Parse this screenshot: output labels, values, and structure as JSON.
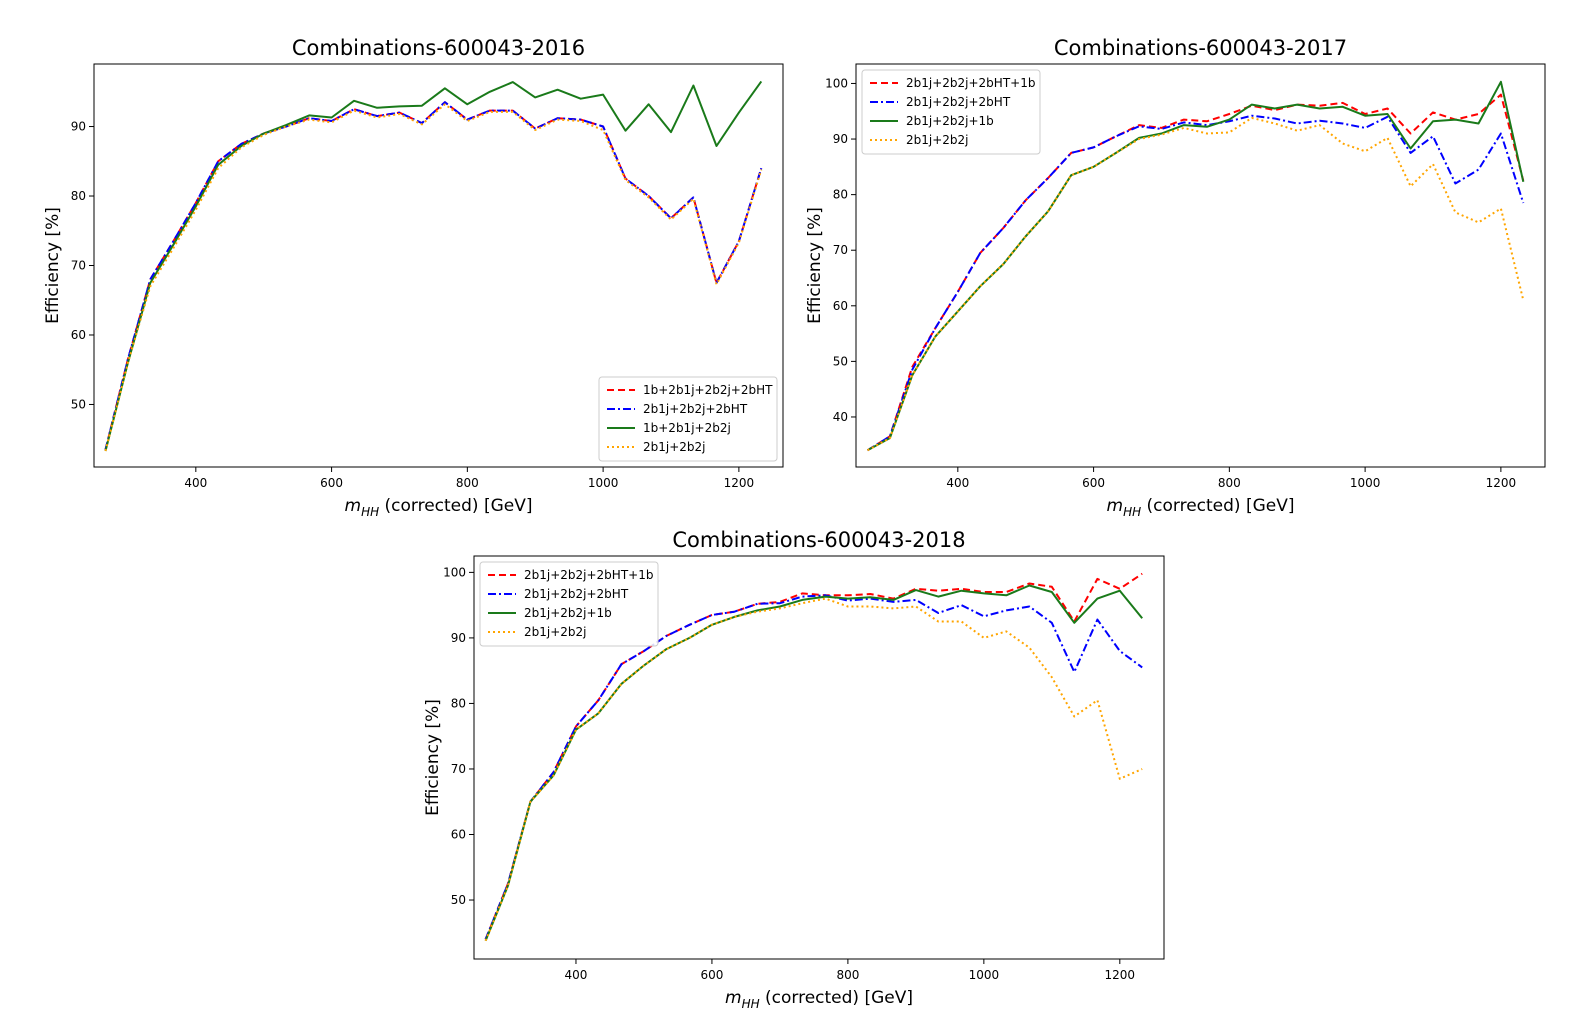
{
  "figure_title": "",
  "chart_data": [
    {
      "type": "line",
      "title": "Combinations-600043-2016",
      "xlabel_main": "m",
      "xlabel_sub": "HH",
      "xlabel_rest": " (corrected) [GeV]",
      "ylabel": "Efficiency [%]",
      "xlim": [
        250,
        1265
      ],
      "ylim": [
        41,
        99
      ],
      "xticks": [
        400,
        600,
        800,
        1000,
        1200
      ],
      "yticks": [
        50,
        60,
        70,
        80,
        90
      ],
      "legend_position": "lower-right",
      "grid": false,
      "x": [
        267,
        300,
        333,
        367,
        400,
        433,
        467,
        500,
        533,
        567,
        600,
        633,
        667,
        700,
        733,
        767,
        800,
        833,
        867,
        900,
        933,
        967,
        1000,
        1033,
        1067,
        1100,
        1133,
        1167,
        1200,
        1233
      ],
      "series": [
        {
          "name": "1b+2b1j+2b2j+2bHT",
          "color": "#ff0000",
          "dash": "7,4",
          "values": [
            43.5,
            56.5,
            68.0,
            73.5,
            79.0,
            85.0,
            87.5,
            89.0,
            90.0,
            91.2,
            90.8,
            92.5,
            91.5,
            92.0,
            90.5,
            93.5,
            91.0,
            92.3,
            92.3,
            89.7,
            91.2,
            91.0,
            90.0,
            82.5,
            80.0,
            76.8,
            79.8,
            67.5,
            73.5,
            84.0
          ]
        },
        {
          "name": "2b1j+2b2j+2bHT",
          "color": "#0000ff",
          "dash": "8,3,2,3",
          "values": [
            43.5,
            56.5,
            68.0,
            73.5,
            79.0,
            85.0,
            87.5,
            89.0,
            90.0,
            91.2,
            90.8,
            92.5,
            91.5,
            92.0,
            90.5,
            93.5,
            91.0,
            92.3,
            92.3,
            89.7,
            91.2,
            91.0,
            90.0,
            82.5,
            80.0,
            76.8,
            79.8,
            67.5,
            73.5,
            84.0
          ]
        },
        {
          "name": "1b+2b1j+2b2j",
          "color": "#1a7a1a",
          "dash": "",
          "values": [
            43.3,
            56.0,
            67.5,
            73.0,
            78.5,
            84.5,
            87.2,
            89.0,
            90.2,
            91.6,
            91.3,
            93.7,
            92.7,
            92.9,
            93.0,
            95.5,
            93.2,
            95.0,
            96.4,
            94.2,
            95.3,
            94.0,
            94.6,
            89.4,
            93.2,
            89.2,
            95.9,
            87.2,
            92.0,
            96.5
          ]
        },
        {
          "name": "2b1j+2b2j",
          "color": "#ffa500",
          "dash": "2,3",
          "values": [
            43.3,
            56.0,
            67.0,
            72.5,
            78.0,
            84.0,
            87.0,
            88.8,
            90.0,
            91.0,
            90.6,
            92.3,
            91.3,
            91.8,
            90.3,
            93.2,
            90.8,
            92.1,
            92.1,
            89.5,
            91.0,
            90.8,
            89.5,
            82.3,
            79.8,
            76.6,
            79.6,
            67.3,
            73.3,
            83.8
          ]
        }
      ]
    },
    {
      "type": "line",
      "title": "Combinations-600043-2017",
      "xlabel_main": "m",
      "xlabel_sub": "HH",
      "xlabel_rest": " (corrected) [GeV]",
      "ylabel": "Efficiency [%]",
      "xlim": [
        250,
        1265
      ],
      "ylim": [
        31,
        103.5
      ],
      "xticks": [
        400,
        600,
        800,
        1000,
        1200
      ],
      "yticks": [
        40,
        50,
        60,
        70,
        80,
        90,
        100
      ],
      "legend_position": "upper-left",
      "grid": false,
      "x": [
        267,
        300,
        333,
        367,
        400,
        433,
        467,
        500,
        533,
        567,
        600,
        633,
        667,
        700,
        733,
        767,
        800,
        833,
        867,
        900,
        933,
        967,
        1000,
        1033,
        1067,
        1100,
        1133,
        1167,
        1200,
        1233
      ],
      "series": [
        {
          "name": "2b1j+2b2j+2bHT+1b",
          "color": "#ff0000",
          "dash": "7,4",
          "values": [
            34.0,
            36.5,
            49.0,
            56.0,
            62.5,
            69.5,
            74.0,
            79.0,
            83.0,
            87.5,
            88.5,
            90.5,
            92.5,
            92.0,
            93.5,
            93.2,
            94.5,
            96.0,
            95.2,
            96.2,
            96.0,
            96.5,
            94.5,
            95.5,
            91.0,
            94.8,
            93.5,
            94.5,
            98.0,
            82.5
          ]
        },
        {
          "name": "2b1j+2b2j+2bHT",
          "color": "#0000ff",
          "dash": "8,3,2,3",
          "values": [
            34.0,
            36.5,
            48.5,
            56.0,
            62.5,
            69.5,
            74.0,
            79.0,
            83.0,
            87.5,
            88.5,
            90.5,
            92.3,
            91.8,
            93.0,
            92.5,
            93.2,
            94.2,
            93.7,
            92.8,
            93.3,
            92.8,
            92.0,
            94.0,
            87.5,
            90.5,
            82.0,
            84.5,
            91.0,
            78.5
          ]
        },
        {
          "name": "2b1j+2b2j+1b",
          "color": "#1a7a1a",
          "dash": "",
          "values": [
            34.0,
            36.2,
            47.5,
            54.5,
            59.0,
            63.5,
            67.5,
            72.5,
            77.0,
            83.5,
            85.0,
            87.5,
            90.2,
            91.0,
            92.5,
            92.2,
            93.5,
            96.2,
            95.5,
            96.2,
            95.5,
            95.8,
            94.2,
            94.5,
            88.3,
            93.2,
            93.5,
            92.8,
            100.3,
            82.3
          ]
        },
        {
          "name": "2b1j+2b2j",
          "color": "#ffa500",
          "dash": "2,3",
          "values": [
            34.0,
            36.2,
            47.5,
            54.5,
            59.0,
            63.5,
            67.5,
            72.5,
            77.0,
            83.5,
            85.0,
            87.5,
            90.0,
            90.8,
            92.0,
            91.0,
            91.2,
            93.8,
            92.8,
            91.5,
            92.5,
            89.2,
            87.8,
            90.2,
            81.5,
            85.5,
            76.8,
            75.0,
            77.5,
            61.0
          ]
        }
      ]
    },
    {
      "type": "line",
      "title": "Combinations-600043-2018",
      "xlabel_main": "m",
      "xlabel_sub": "HH",
      "xlabel_rest": " (corrected) [GeV]",
      "ylabel": "Efficiency [%]",
      "xlim": [
        250,
        1265
      ],
      "ylim": [
        41,
        102.5
      ],
      "xticks": [
        400,
        600,
        800,
        1000,
        1200
      ],
      "yticks": [
        50,
        60,
        70,
        80,
        90,
        100
      ],
      "legend_position": "upper-left",
      "grid": false,
      "x": [
        267,
        300,
        333,
        367,
        400,
        433,
        467,
        500,
        533,
        567,
        600,
        633,
        667,
        700,
        733,
        767,
        800,
        833,
        867,
        900,
        933,
        967,
        1000,
        1033,
        1067,
        1100,
        1133,
        1167,
        1200,
        1233
      ],
      "series": [
        {
          "name": "2b1j+2b2j+2bHT+1b",
          "color": "#ff0000",
          "dash": "7,4",
          "values": [
            44.0,
            52.5,
            65.0,
            69.5,
            76.5,
            80.5,
            86.0,
            88.0,
            90.3,
            92.0,
            93.5,
            94.0,
            95.2,
            95.5,
            96.8,
            96.5,
            96.5,
            96.7,
            96.0,
            97.5,
            97.2,
            97.5,
            97.0,
            97.0,
            98.3,
            97.8,
            92.5,
            99.0,
            97.5,
            99.8
          ]
        },
        {
          "name": "2b1j+2b2j+2bHT",
          "color": "#0000ff",
          "dash": "8,3,2,3",
          "values": [
            44.0,
            52.5,
            65.0,
            69.5,
            76.5,
            80.5,
            86.0,
            88.0,
            90.3,
            92.0,
            93.5,
            94.0,
            95.2,
            95.3,
            96.3,
            96.5,
            95.7,
            96.0,
            95.5,
            95.8,
            93.8,
            95.0,
            93.3,
            94.2,
            94.8,
            92.3,
            84.8,
            92.8,
            88.0,
            85.5
          ]
        },
        {
          "name": "2b1j+2b2j+1b",
          "color": "#1a7a1a",
          "dash": "",
          "values": [
            43.8,
            52.2,
            65.0,
            69.0,
            76.0,
            78.5,
            83.0,
            85.8,
            88.3,
            90.0,
            92.0,
            93.2,
            94.2,
            94.8,
            95.8,
            96.3,
            96.0,
            96.2,
            95.8,
            97.3,
            96.3,
            97.2,
            96.8,
            96.5,
            98.0,
            97.0,
            92.3,
            96.0,
            97.2,
            93.0
          ]
        },
        {
          "name": "2b1j+2b2j",
          "color": "#ffa500",
          "dash": "2,3",
          "values": [
            43.8,
            52.2,
            65.0,
            69.0,
            76.0,
            78.5,
            83.0,
            85.8,
            88.3,
            90.0,
            92.0,
            93.2,
            94.0,
            94.5,
            95.3,
            96.0,
            94.8,
            94.8,
            94.5,
            94.8,
            92.5,
            92.5,
            90.0,
            91.0,
            88.5,
            84.0,
            78.0,
            80.5,
            68.5,
            70.0
          ]
        }
      ]
    }
  ]
}
